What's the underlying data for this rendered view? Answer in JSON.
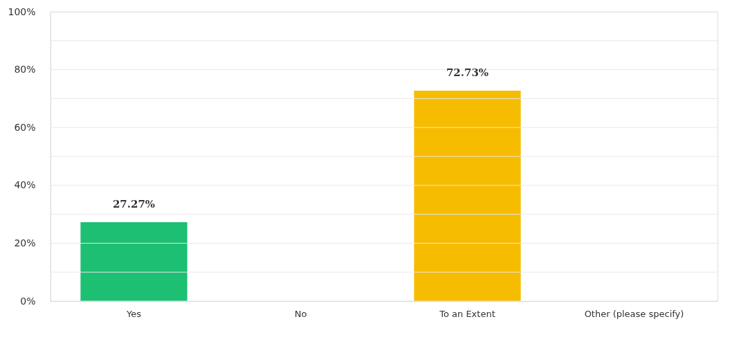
{
  "chart_data": {
    "type": "bar",
    "categories": [
      "Yes",
      "No",
      "To an Extent",
      "Other (please specify)"
    ],
    "values": [
      27.27,
      0,
      72.73,
      0
    ],
    "colors": [
      "#1dbf73",
      "#f6bc00",
      "#f6bc00",
      "#f6bc00"
    ],
    "value_labels": [
      "27.27%",
      null,
      "72.73%",
      null
    ],
    "ylim": [
      0,
      100
    ],
    "yticks": [
      {
        "value": 0,
        "label": "0%"
      },
      {
        "value": 10,
        "label": null
      },
      {
        "value": 20,
        "label": "20%"
      },
      {
        "value": 30,
        "label": null
      },
      {
        "value": 40,
        "label": "40%"
      },
      {
        "value": 50,
        "label": null
      },
      {
        "value": 60,
        "label": "60%"
      },
      {
        "value": 70,
        "label": null
      },
      {
        "value": 80,
        "label": "80%"
      },
      {
        "value": 90,
        "label": null
      },
      {
        "value": 100,
        "label": "100%"
      }
    ],
    "grid": "y"
  }
}
